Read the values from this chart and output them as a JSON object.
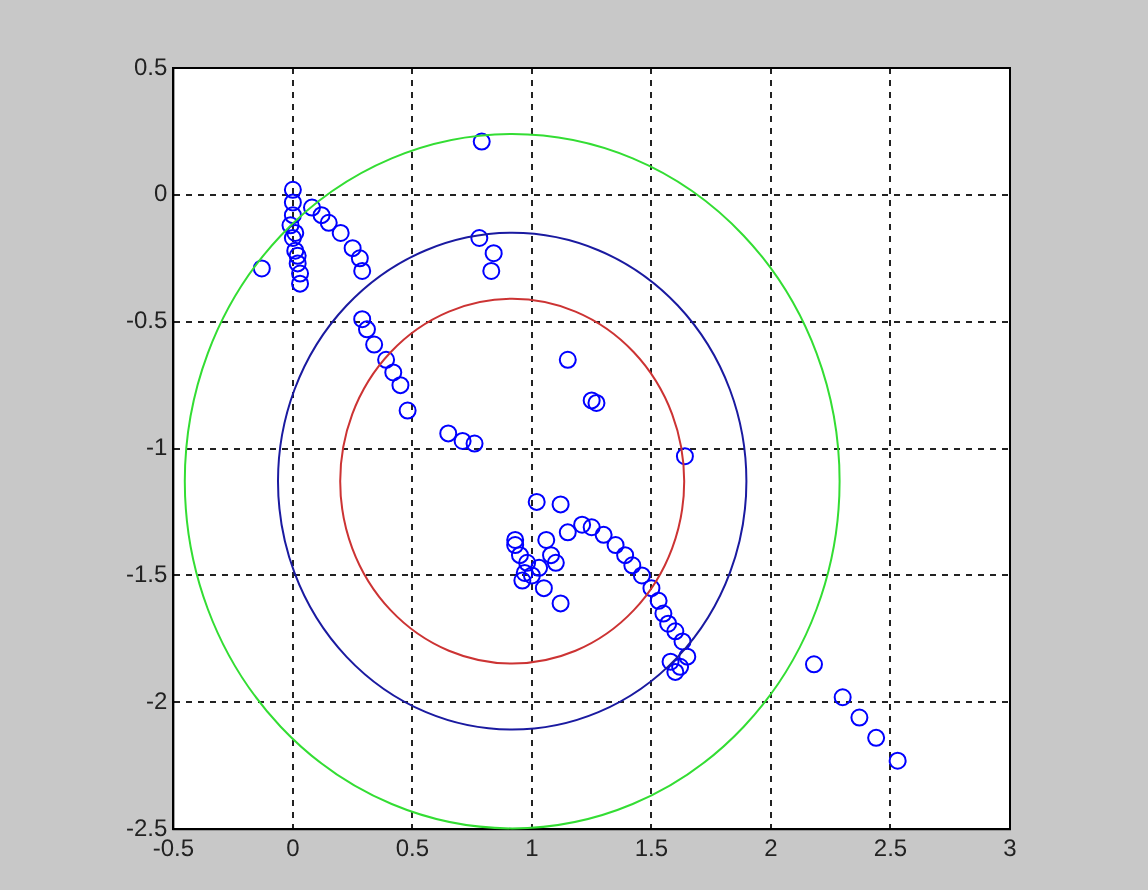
{
  "chart_data": {
    "type": "scatter",
    "xlim": [
      -0.5,
      3
    ],
    "ylim": [
      -2.5,
      0.5
    ],
    "xticks": [
      -0.5,
      0,
      0.5,
      1,
      1.5,
      2,
      2.5,
      3
    ],
    "yticks": [
      -2.5,
      -2,
      -1.5,
      -1,
      -0.5,
      0,
      0.5
    ],
    "grid": true,
    "legend": false,
    "marker": "circle",
    "series": [
      {
        "color": "#0000ff",
        "x": [
          0,
          0,
          0,
          -0.01,
          0,
          0.01,
          0.02,
          0.03,
          0.03,
          0.02,
          0.01,
          -0.13,
          0.08,
          0.12,
          0.15,
          0.2,
          0.25,
          0.28,
          0.29,
          0.29,
          0.31,
          0.34,
          0.39,
          0.42,
          0.45,
          0.48,
          0.65,
          0.71,
          0.76,
          0.79,
          0.78,
          0.84,
          0.83,
          1.15,
          1.25,
          1.27,
          1.64,
          1.02,
          0.93,
          1.12,
          0.93,
          0.97,
          1.12,
          1.06,
          1.21,
          1.3,
          1.39,
          1.46,
          1.53,
          1.57,
          1.63,
          1.6,
          1.65,
          0.95,
          0.98,
          1,
          1.03,
          1.08,
          1.15,
          1.1,
          0.96,
          1.25,
          1.35,
          1.42,
          1.5,
          1.55,
          1.6,
          1.58,
          1.62,
          1.05,
          2.18,
          2.3,
          2.37,
          2.44,
          2.53
        ],
        "values": [
          0.02,
          -0.03,
          -0.08,
          -0.12,
          -0.17,
          -0.22,
          -0.27,
          -0.31,
          -0.35,
          -0.24,
          -0.15,
          -0.29,
          -0.05,
          -0.08,
          -0.11,
          -0.15,
          -0.21,
          -0.25,
          -0.3,
          -0.49,
          -0.53,
          -0.59,
          -0.65,
          -0.7,
          -0.75,
          -0.85,
          -0.94,
          -0.97,
          -0.98,
          0.21,
          -0.17,
          -0.23,
          -0.3,
          -0.65,
          -0.81,
          -0.82,
          -1.03,
          -1.21,
          -1.36,
          -1.22,
          -1.38,
          -1.49,
          -1.61,
          -1.36,
          -1.3,
          -1.34,
          -1.42,
          -1.5,
          -1.6,
          -1.69,
          -1.76,
          -1.88,
          -1.82,
          -1.42,
          -1.45,
          -1.5,
          -1.47,
          -1.42,
          -1.33,
          -1.45,
          -1.52,
          -1.31,
          -1.38,
          -1.46,
          -1.55,
          -1.65,
          -1.72,
          -1.84,
          -1.86,
          -1.55,
          -1.85,
          -1.98,
          -2.06,
          -2.14,
          -2.23
        ]
      }
    ]
  }
}
